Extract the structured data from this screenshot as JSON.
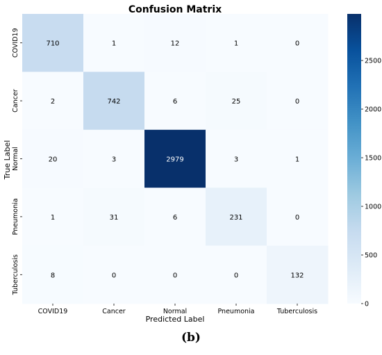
{
  "chart_data": {
    "type": "heatmap",
    "title": "Confusion Matrix",
    "xlabel": "Predicted Label",
    "ylabel": "True Label",
    "x_categories": [
      "COVID19",
      "Cancer",
      "Normal",
      "Pneumonia",
      "Tuberculosis"
    ],
    "y_categories": [
      "COVID19",
      "Cancer",
      "Normal",
      "Pneumonia",
      "Tuberculosis"
    ],
    "values": [
      [
        710,
        1,
        12,
        1,
        0
      ],
      [
        2,
        742,
        6,
        25,
        0
      ],
      [
        20,
        3,
        2979,
        3,
        1
      ],
      [
        1,
        31,
        6,
        231,
        0
      ],
      [
        8,
        0,
        0,
        0,
        132
      ]
    ],
    "colorbar": {
      "colormap": "Blues",
      "min": 0,
      "max": 2979,
      "ticks": [
        0,
        500,
        1000,
        1500,
        2000,
        2500
      ]
    },
    "colors": {
      "low": "#f7fbff",
      "high": "#08306b",
      "text_dark": "#000000",
      "text_light": "#ffffff"
    },
    "grid": false,
    "legend": "none"
  },
  "panel_label": "(b)"
}
